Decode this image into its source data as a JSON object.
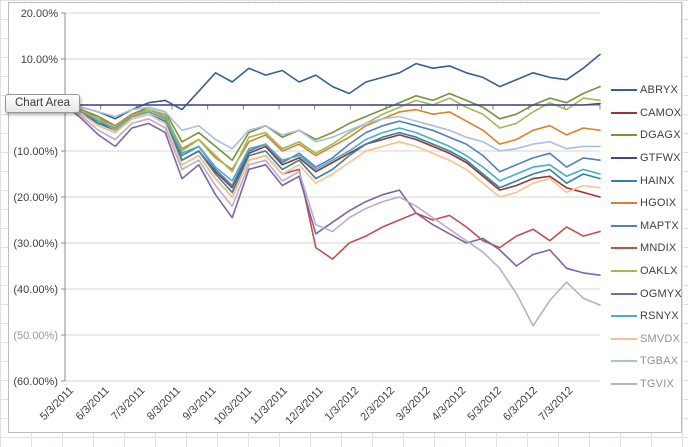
{
  "tooltip": {
    "text": "Chart Area"
  },
  "axes_style": {
    "grid_color": "#d6d6d6",
    "axis_color": "#8c8c8c",
    "zero_axis_color": "#7f7f7f",
    "label_color": "#3f3f3f",
    "muted_label_color": "#9a9a9a"
  },
  "legend": {
    "items": [
      {
        "ticker": "ABRYX",
        "color": "#366092",
        "muted": false
      },
      {
        "ticker": "CAMOX",
        "color": "#953735",
        "muted": false
      },
      {
        "ticker": "DGAGX",
        "color": "#77933c",
        "muted": false
      },
      {
        "ticker": "GTFWX",
        "color": "#4d428a",
        "muted": false
      },
      {
        "ticker": "HAINX",
        "color": "#31849b",
        "muted": false
      },
      {
        "ticker": "HGOIX",
        "color": "#d9822b",
        "muted": false
      },
      {
        "ticker": "MAPTX",
        "color": "#4f81bd",
        "muted": false
      },
      {
        "ticker": "MNDIX",
        "color": "#c0504d",
        "muted": false
      },
      {
        "ticker": "OAKLX",
        "color": "#9bbb59",
        "muted": false
      },
      {
        "ticker": "OGMYX",
        "color": "#8064a2",
        "muted": false
      },
      {
        "ticker": "RSNYX",
        "color": "#4bacc6",
        "muted": false
      },
      {
        "ticker": "SMVDX",
        "color": "#fac090",
        "muted": true
      },
      {
        "ticker": "TGBAX",
        "color": "#a9c0de",
        "muted": true
      },
      {
        "ticker": "TGVIX",
        "color": "#b8afd0",
        "muted": true
      }
    ]
  },
  "chart_data": {
    "type": "line",
    "title": "",
    "xlabel": "",
    "ylabel": "",
    "ylim": [
      -60,
      20
    ],
    "grid": true,
    "legend_position": "right",
    "x_labels": [
      "5/3/2011",
      "6/3/2011",
      "7/3/2011",
      "8/3/2011",
      "9/3/2011",
      "10/3/2011",
      "11/3/2011",
      "12/3/2011",
      "1/3/2012",
      "2/3/2012",
      "3/3/2012",
      "4/3/2012",
      "5/3/2012",
      "6/3/2012",
      "7/3/2012"
    ],
    "y_ticks": [
      {
        "label": "20.00%",
        "value": 20,
        "muted": false
      },
      {
        "label": "10.00%",
        "value": 10,
        "muted": false
      },
      {
        "label": "0.00%",
        "value": 0,
        "muted": false
      },
      {
        "label": "(10.00%)",
        "value": -10,
        "muted": false
      },
      {
        "label": "(20.00%)",
        "value": -20,
        "muted": false
      },
      {
        "label": "(30.00%)",
        "value": -30,
        "muted": false
      },
      {
        "label": "(40.00%)",
        "value": -40,
        "muted": false
      },
      {
        "label": "(50.00%)",
        "value": -50,
        "muted": true
      },
      {
        "label": "(60.00%)",
        "value": -60,
        "muted": false
      }
    ],
    "x_note": "values sampled ~biweekly from 5/3/2011 through late 7/2012, percent cumulative return",
    "series": [
      {
        "name": "ABRYX",
        "color": "#366092",
        "on_top": false,
        "values": [
          0,
          -0.5,
          -1.5,
          -3,
          -1,
          0.5,
          1,
          -1,
          3,
          7,
          5,
          8,
          6.5,
          7.5,
          5,
          6.5,
          4,
          2.5,
          5,
          6,
          7,
          9,
          8,
          8.5,
          7,
          6,
          4,
          5.5,
          7,
          6,
          5.5,
          8,
          11
        ]
      },
      {
        "name": "CAMOX",
        "color": "#953735",
        "on_top": false,
        "values": [
          0,
          -1.5,
          -4,
          -5,
          -2.5,
          -1.5,
          -3,
          -12,
          -10,
          -14.5,
          -18,
          -10.5,
          -9,
          -13,
          -11.5,
          -14.5,
          -12.5,
          -10.5,
          -8.5,
          -7.5,
          -6.5,
          -7.5,
          -9,
          -10.5,
          -12.5,
          -15.5,
          -18.5,
          -17.5,
          -16,
          -15.5,
          -18,
          -19,
          -20
        ]
      },
      {
        "name": "DGAGX",
        "color": "#77933c",
        "on_top": false,
        "values": [
          0,
          -1,
          -2.5,
          -4.5,
          -2,
          -0.5,
          -1.5,
          -8,
          -6,
          -9,
          -12,
          -6,
          -4.5,
          -7,
          -5.5,
          -7.5,
          -6,
          -4,
          -2.5,
          -1,
          0.5,
          2,
          1,
          2.5,
          1,
          -0.5,
          -3,
          -2,
          0,
          1.5,
          0.5,
          2.5,
          4
        ]
      },
      {
        "name": "GTFWX",
        "color": "#4d428a",
        "on_top": true,
        "values": [
          0,
          0,
          0,
          0,
          0,
          0,
          0,
          0,
          0,
          0,
          0,
          0,
          0,
          0,
          0,
          0,
          0,
          0,
          0,
          0,
          0,
          0,
          0,
          0,
          0,
          0,
          0,
          0,
          0,
          0,
          0,
          0,
          0.3
        ]
      },
      {
        "name": "HAINX",
        "color": "#31849b",
        "on_top": false,
        "values": [
          0,
          -2,
          -4,
          -5.5,
          -3,
          -2,
          -3.5,
          -12,
          -10,
          -15,
          -19,
          -11,
          -10,
          -14,
          -12,
          -16,
          -14,
          -11,
          -8.5,
          -7,
          -6,
          -7,
          -8.5,
          -10,
          -12,
          -15,
          -18,
          -16.5,
          -15,
          -14,
          -17,
          -15,
          -16
        ]
      },
      {
        "name": "HGOIX",
        "color": "#d9822b",
        "on_top": false,
        "values": [
          0,
          -1,
          -3,
          -4.5,
          -2,
          -1,
          -2.5,
          -9.5,
          -7.5,
          -11.5,
          -14,
          -8,
          -6.5,
          -10,
          -8.5,
          -11,
          -9,
          -7,
          -4.5,
          -3,
          -1.5,
          -1,
          -2,
          -1.5,
          -3.5,
          -5.5,
          -8.5,
          -7.5,
          -5.5,
          -4.5,
          -6.5,
          -5,
          -5.5
        ]
      },
      {
        "name": "MAPTX",
        "color": "#4f81bd",
        "on_top": false,
        "values": [
          0,
          -1.5,
          -3.5,
          -5,
          -2.5,
          -1.5,
          -3,
          -11,
          -9,
          -14,
          -17.5,
          -10,
          -8.5,
          -12.5,
          -10.5,
          -13.5,
          -11.5,
          -8.5,
          -6,
          -4.5,
          -3.5,
          -4.5,
          -5.5,
          -7,
          -8.5,
          -11,
          -14.5,
          -13,
          -11.5,
          -10.5,
          -13.5,
          -11.5,
          -12
        ]
      },
      {
        "name": "MNDIX",
        "color": "#c0504d",
        "on_top": false,
        "values": [
          0,
          -2,
          -4.5,
          -6,
          -3,
          -2,
          -4,
          -13,
          -11,
          -16,
          -20,
          -12,
          -11,
          -15,
          -14,
          -31,
          -33.5,
          -30,
          -28.5,
          -26.5,
          -25,
          -23.5,
          -25,
          -24,
          -26.5,
          -29.5,
          -31,
          -28.5,
          -27,
          -29.5,
          -26.5,
          -28.5,
          -27.5
        ]
      },
      {
        "name": "OAKLX",
        "color": "#9bbb59",
        "on_top": false,
        "values": [
          0,
          -1.5,
          -3,
          -5.5,
          -2.5,
          -1,
          -2,
          -10,
          -7.5,
          -11,
          -14.5,
          -7,
          -6,
          -9.5,
          -8,
          -10.5,
          -8.5,
          -6,
          -4,
          -2,
          -0.5,
          1,
          0,
          1.5,
          -0.5,
          -2,
          -5,
          -4,
          -1.5,
          0.5,
          -1,
          1.5,
          1
        ]
      },
      {
        "name": "OGMYX",
        "color": "#8064a2",
        "on_top": false,
        "values": [
          0,
          -3,
          -6.5,
          -9,
          -5,
          -4,
          -6,
          -16,
          -13,
          -19.5,
          -24.5,
          -14,
          -13,
          -17.5,
          -15.5,
          -28,
          -25.5,
          -23,
          -21,
          -19.5,
          -18.5,
          -23.5,
          -26,
          -28,
          -30,
          -29,
          -31.5,
          -35,
          -32.5,
          -31.5,
          -35.5,
          -36.5,
          -37
        ]
      },
      {
        "name": "RSNYX",
        "color": "#4bacc6",
        "on_top": false,
        "values": [
          0,
          -1.5,
          -3.5,
          -5,
          -2.5,
          -1.5,
          -3,
          -10.5,
          -9,
          -13.5,
          -16.5,
          -9.5,
          -8.5,
          -12,
          -11,
          -14,
          -12,
          -10,
          -7.5,
          -6,
          -5,
          -6,
          -7.5,
          -9,
          -11,
          -13.5,
          -16.5,
          -15,
          -13.5,
          -13,
          -15.5,
          -14,
          -15
        ]
      },
      {
        "name": "SMVDX",
        "color": "#fac090",
        "on_top": false,
        "values": [
          0,
          -2,
          -4.5,
          -6,
          -3,
          -2,
          -4,
          -13,
          -11,
          -16,
          -20,
          -12,
          -11,
          -15,
          -13,
          -17,
          -15,
          -12.5,
          -10,
          -9,
          -8,
          -9,
          -10.5,
          -12,
          -14,
          -17,
          -20,
          -19,
          -17,
          -16,
          -19,
          -17.5,
          -18
        ]
      },
      {
        "name": "TGBAX",
        "color": "#a9c0de",
        "on_top": false,
        "values": [
          0,
          -0.5,
          -1.5,
          -2.5,
          -1,
          -0.5,
          -1.5,
          -5.5,
          -4.5,
          -7.5,
          -9.5,
          -5.5,
          -4.5,
          -6.5,
          -5.5,
          -8,
          -7,
          -5.5,
          -4,
          -3,
          -2.5,
          -3.5,
          -4.5,
          -5.5,
          -7,
          -8,
          -10,
          -9.5,
          -8.5,
          -8,
          -9.5,
          -9,
          -9
        ]
      },
      {
        "name": "TGVIX",
        "color": "#b8afd0",
        "on_top": false,
        "values": [
          0,
          -2.5,
          -5.5,
          -7.5,
          -4,
          -3,
          -5,
          -14,
          -12,
          -17.5,
          -22,
          -13,
          -12,
          -16.5,
          -14.5,
          -26,
          -27.5,
          -24.5,
          -22.5,
          -21,
          -20,
          -22,
          -24.5,
          -27,
          -29.5,
          -32,
          -35.5,
          -41,
          -48,
          -42.5,
          -38.5,
          -42,
          -43.5
        ]
      }
    ]
  }
}
